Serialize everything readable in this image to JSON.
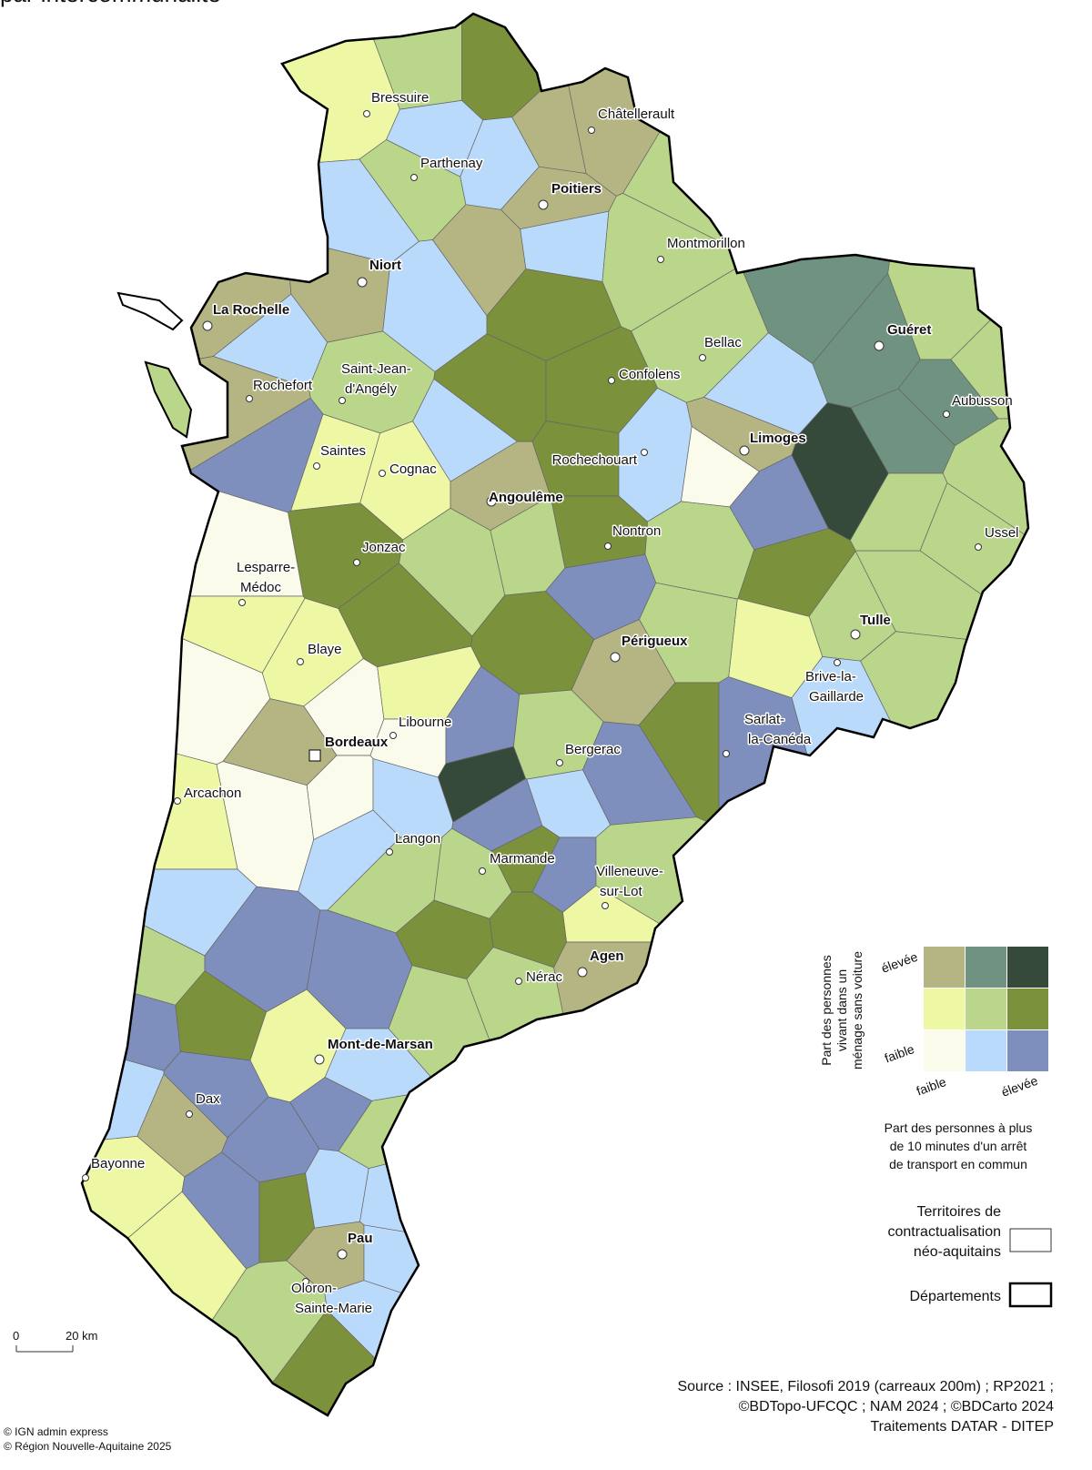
{
  "title": "par intercommunalité",
  "cities": [
    [
      "Bressuire"
    ],
    [
      "Châtellerault"
    ],
    [
      "Parthenay"
    ],
    [
      "Poitiers"
    ],
    [
      "Montmorillon"
    ],
    [
      "Niort"
    ],
    [
      "La Rochelle"
    ],
    [
      "Bellac"
    ],
    [
      "Saint-Jean-",
      "d'Angély"
    ],
    [
      "Confolens"
    ],
    [
      "Guéret"
    ],
    [
      "Aubusson"
    ],
    [
      "Rochefort"
    ],
    [
      "Saintes"
    ],
    [
      "Limoges"
    ],
    [
      "Rochechouart"
    ],
    [
      "Cognac"
    ],
    [
      "Angoulême"
    ],
    [
      "Nontron"
    ],
    [
      "Jonzac"
    ],
    [
      "Ussel"
    ],
    [
      "Lesparre-",
      "Médoc"
    ],
    [
      "Tulle"
    ],
    [
      "Blaye"
    ],
    [
      "Périgueux"
    ],
    [
      "Brive-la-",
      "Gaillarde"
    ],
    [
      "Libourne"
    ],
    [
      "Sarlat-",
      "la-Canéda"
    ],
    [
      "Bordeaux"
    ],
    [
      "Bergerac"
    ],
    [
      "Arcachon"
    ],
    [
      "Langon"
    ],
    [
      "Marmande"
    ],
    [
      "Villeneuve-",
      "sur-Lot"
    ],
    [
      "Agen"
    ],
    [
      "Nérac"
    ],
    [
      "Mont-de-Marsan"
    ],
    [
      "Dax"
    ],
    [
      "Bayonne"
    ],
    [
      "Pau"
    ],
    [
      "Oloron-",
      "Sainte-Marie"
    ]
  ],
  "legend": {
    "y_axis_label": [
      "Part des personnes",
      "vivant dans un",
      "ménage sans voiture"
    ],
    "y_high": "élevée",
    "y_low": "faible",
    "x_low": "faible",
    "x_high": "élevée",
    "x_axis_label": [
      "Part des personnes à plus",
      "de 10 minutes d'un arrêt",
      "de transport en commun"
    ],
    "colors": [
      [
        "#b5b584",
        "#6f9380",
        "#354a3b"
      ],
      [
        "#eef8a4",
        "#b9d68a",
        "#7c913b"
      ],
      [
        "#fbfbec",
        "#badafb",
        "#7e8fbd"
      ]
    ]
  },
  "territories_label": [
    "Territoires de",
    "contractualisation",
    "néo-aquitains"
  ],
  "departments_label": "Départements",
  "scale": {
    "zero": "0",
    "distance": "20 km"
  },
  "source": [
    "Source : INSEE, Filosofi 2019 (carreaux 200m) ; RP2021 ;",
    "©BDTopo-UFCQC ; NAM 2024 ; ©BDCarto 2024",
    "Traitements DATAR - DITEP"
  ],
  "credits": [
    "© IGN admin express",
    "© Région Nouvelle-Aquitaine 2025"
  ]
}
